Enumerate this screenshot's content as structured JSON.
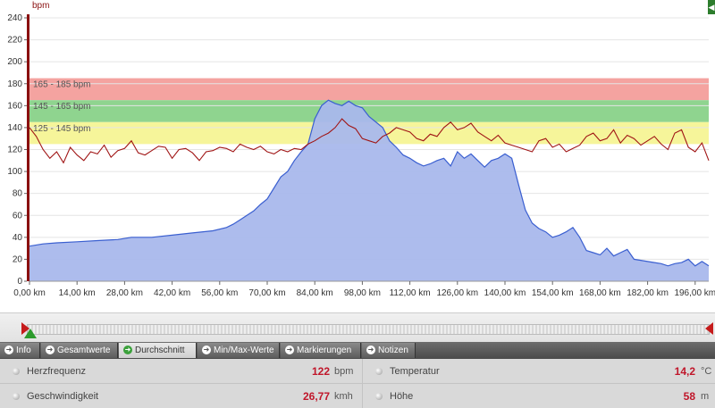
{
  "chart_data": {
    "type": "line",
    "y_unit": "bpm",
    "ylim": [
      0,
      240
    ],
    "yticks": [
      "0",
      "20",
      "40",
      "60",
      "80",
      "100",
      "120",
      "140",
      "160",
      "180",
      "200",
      "220",
      "240"
    ],
    "xlim": [
      0,
      200
    ],
    "xticks": [
      "0,00 km",
      "14,00 km",
      "28,00 km",
      "42,00 km",
      "56,00 km",
      "70,00 km",
      "84,00 km",
      "98,00 km",
      "112,00 km",
      "126,00 km",
      "140,00 km",
      "154,00 km",
      "168,00 km",
      "182,00 km",
      "196,00 km"
    ],
    "xtick_values": [
      0,
      14,
      28,
      42,
      56,
      70,
      84,
      98,
      112,
      126,
      140,
      154,
      168,
      182,
      196
    ],
    "zones": [
      {
        "label": "165 - 185 bpm",
        "from": 165,
        "to": 185,
        "color": "#f4a3a0"
      },
      {
        "label": "145 - 165 bpm",
        "from": 145,
        "to": 165,
        "color": "#8fd48f"
      },
      {
        "label": "125 - 145 bpm",
        "from": 125,
        "to": 145,
        "color": "#f6f59a"
      }
    ],
    "grid": true,
    "series": [
      {
        "kind": "area",
        "color": "#3a5fd0",
        "fill": "#a9b8ec",
        "x": [
          0,
          4,
          8,
          14,
          20,
          26,
          30,
          36,
          42,
          48,
          54,
          58,
          60,
          62,
          64,
          66,
          68,
          70,
          72,
          74,
          76,
          78,
          80,
          82,
          84,
          86,
          88,
          90,
          92,
          94,
          96,
          98,
          100,
          104,
          106,
          108,
          110,
          112,
          114,
          116,
          118,
          120,
          122,
          124,
          126,
          128,
          130,
          132,
          134,
          136,
          138,
          140,
          142,
          144,
          146,
          148,
          150,
          152,
          154,
          156,
          158,
          160,
          162,
          164,
          166,
          168,
          170,
          172,
          174,
          176,
          178,
          180,
          182,
          184,
          186,
          188,
          190,
          192,
          194,
          196,
          198,
          200
        ],
        "y": [
          32,
          34,
          35,
          36,
          37,
          38,
          40,
          40,
          42,
          44,
          46,
          49,
          52,
          56,
          60,
          64,
          70,
          75,
          85,
          95,
          100,
          110,
          118,
          125,
          148,
          160,
          165,
          162,
          160,
          164,
          160,
          158,
          150,
          140,
          128,
          122,
          115,
          112,
          108,
          105,
          107,
          110,
          112,
          105,
          118,
          112,
          116,
          110,
          104,
          110,
          112,
          116,
          112,
          88,
          65,
          53,
          48,
          45,
          40,
          42,
          45,
          49,
          40,
          28,
          26,
          24,
          30,
          23,
          26,
          29,
          20,
          19,
          18,
          17,
          16,
          14,
          16,
          17,
          20,
          14,
          18,
          14
        ]
      },
      {
        "kind": "line",
        "color": "#a01515",
        "x": [
          0,
          2,
          4,
          6,
          8,
          10,
          12,
          14,
          16,
          18,
          20,
          22,
          24,
          26,
          28,
          30,
          32,
          34,
          36,
          38,
          40,
          42,
          44,
          46,
          48,
          50,
          52,
          54,
          56,
          58,
          60,
          62,
          64,
          66,
          68,
          70,
          72,
          74,
          76,
          78,
          80,
          82,
          84,
          86,
          88,
          90,
          92,
          94,
          96,
          98,
          100,
          102,
          104,
          106,
          108,
          110,
          112,
          114,
          116,
          118,
          120,
          122,
          124,
          126,
          128,
          130,
          132,
          134,
          136,
          138,
          140,
          142,
          144,
          146,
          148,
          150,
          152,
          154,
          156,
          158,
          160,
          162,
          164,
          166,
          168,
          170,
          172,
          174,
          176,
          178,
          180,
          182,
          184,
          186,
          188,
          190,
          192,
          194,
          196,
          198,
          200
        ],
        "y": [
          140,
          132,
          120,
          112,
          118,
          108,
          122,
          115,
          110,
          118,
          116,
          124,
          113,
          119,
          121,
          128,
          117,
          115,
          119,
          123,
          122,
          112,
          120,
          121,
          117,
          110,
          118,
          119,
          122,
          121,
          118,
          125,
          122,
          120,
          123,
          118,
          116,
          120,
          118,
          121,
          120,
          125,
          128,
          132,
          135,
          140,
          148,
          142,
          139,
          130,
          128,
          126,
          132,
          135,
          140,
          138,
          136,
          130,
          128,
          134,
          132,
          140,
          145,
          138,
          140,
          144,
          136,
          132,
          128,
          133,
          126,
          124,
          122,
          120,
          118,
          128,
          130,
          122,
          125,
          118,
          121,
          124,
          132,
          135,
          128,
          130,
          138,
          126,
          133,
          130,
          124,
          128,
          132,
          125,
          120,
          135,
          138,
          122,
          118,
          126,
          110
        ]
      }
    ]
  },
  "ui": {
    "side_toggle": "◀",
    "tabs": [
      {
        "label": "Info",
        "active": false
      },
      {
        "label": "Gesamtwerte",
        "active": false
      },
      {
        "label": "Durchschnitt",
        "active": true
      },
      {
        "label": "Min/Max-Werte",
        "active": false
      },
      {
        "label": "Markierungen",
        "active": false
      },
      {
        "label": "Notizen",
        "active": false
      }
    ],
    "stats": {
      "heart_label": "Herzfrequenz",
      "heart_value": "122",
      "heart_unit": "bpm",
      "speed_label": "Geschwindigkeit",
      "speed_value": "26,77",
      "speed_unit": "kmh",
      "temp_label": "Temperatur",
      "temp_value": "14,2",
      "temp_unit": "°C",
      "alt_label": "Höhe",
      "alt_value": "58",
      "alt_unit": "m"
    }
  }
}
